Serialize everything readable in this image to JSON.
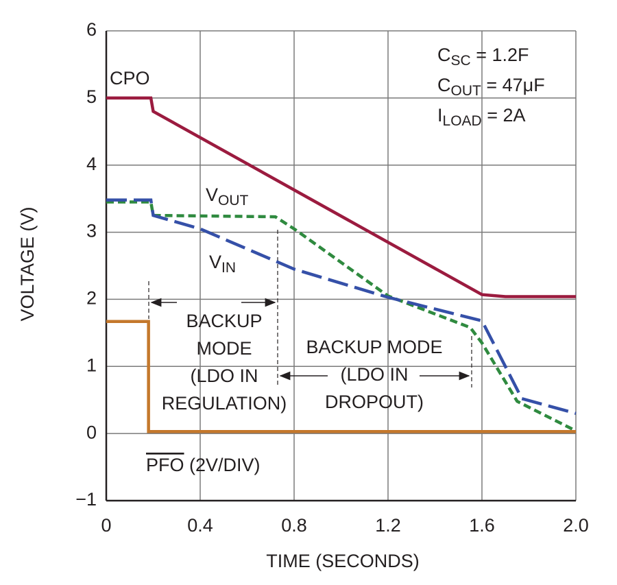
{
  "chart_data": {
    "type": "line",
    "x_label": "TIME (SECONDS)",
    "y_label": "VOLTAGE (V)",
    "xlim": [
      0,
      2
    ],
    "ylim": [
      -1,
      6
    ],
    "xticks": [
      0,
      0.4,
      0.8,
      1.2,
      1.6,
      {
        "value": 2,
        "label": "2.0"
      }
    ],
    "yticks": [
      {
        "value": -1,
        "label": "−1"
      },
      0,
      1,
      2,
      3,
      4,
      5,
      6
    ],
    "grid": true,
    "series": [
      {
        "name": "CPO",
        "color": "#9b1b3f",
        "dash": "solid",
        "x": [
          0,
          0.19,
          0.2,
          1.6,
          1.7,
          2.0
        ],
        "values": [
          5,
          5,
          4.8,
          2.07,
          2.04,
          2.04
        ]
      },
      {
        "label": [
          {
            "text": "V"
          },
          {
            "text": "OUT",
            "sub": true
          }
        ],
        "color": "#2f8a3f",
        "dash": "short",
        "x": [
          0,
          0.19,
          0.2,
          0.72,
          0.8,
          1.2,
          1.55,
          1.6,
          1.75,
          2.0
        ],
        "values": [
          3.45,
          3.45,
          3.25,
          3.23,
          3.05,
          2.05,
          1.58,
          1.35,
          0.48,
          0.04
        ]
      },
      {
        "label": [
          {
            "text": "V"
          },
          {
            "text": "IN",
            "sub": true
          }
        ],
        "color": "#3550a8",
        "dash": "long",
        "x": [
          0,
          0.19,
          0.2,
          0.4,
          0.8,
          1.2,
          1.6,
          1.77,
          2.0
        ],
        "values": [
          3.48,
          3.48,
          3.25,
          3.05,
          2.45,
          2.03,
          1.68,
          0.52,
          0.3
        ]
      },
      {
        "label": [
          {
            "text": "PFO",
            "overline": true
          },
          {
            "text": " (2V/DIV)"
          }
        ],
        "color": "#c4782c",
        "dash": "solid",
        "x": [
          0,
          0.18,
          0.18,
          2.0
        ],
        "values": [
          1.67,
          1.67,
          0.03,
          0.03
        ]
      }
    ],
    "conditions": [
      [
        {
          "text": "C"
        },
        {
          "text": "SC",
          "sub": true
        },
        {
          "text": " = 1.2F"
        }
      ],
      [
        {
          "text": "C"
        },
        {
          "text": "OUT",
          "sub": true
        },
        {
          "text": " = 47μF"
        }
      ],
      [
        {
          "text": "I"
        },
        {
          "text": "LOAD",
          "sub": true
        },
        {
          "text": " = 2A"
        }
      ]
    ],
    "annotations": [
      {
        "lines": [
          "BACKUP",
          "MODE",
          "(LDO IN",
          "REGULATION)"
        ]
      },
      {
        "lines": [
          "BACKUP MODE",
          "(LDO IN",
          "DROPOUT)"
        ]
      }
    ]
  }
}
